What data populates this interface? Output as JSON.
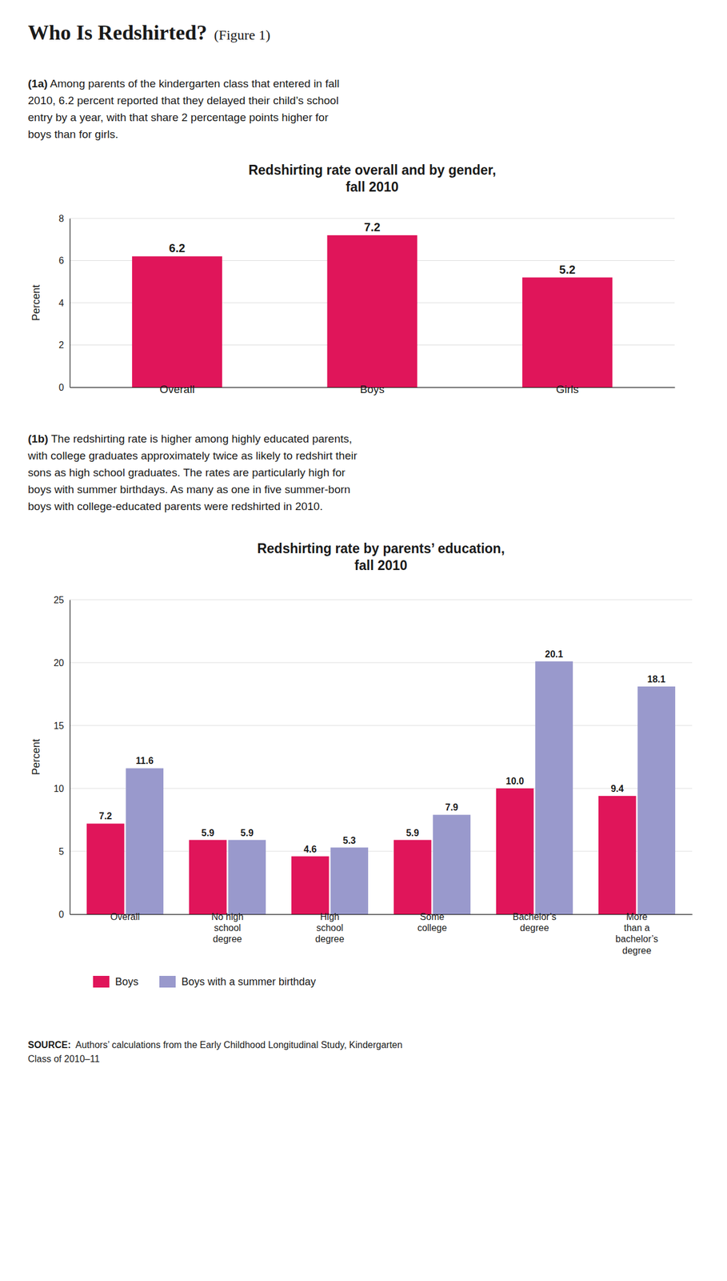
{
  "title": "Who Is Redshirted?",
  "subtitle": "(Figure 1)",
  "annotations": [
    "(1a) Among parents of the kindergarten class that entered in fall\n2010, 6.2 percent reported that they delayed their child’s school\nentry by a year, with that share 2 percentage points higher for\nboys than for girls.",
    "(1b) The redshirting rate is higher among highly educated parents,\nwith college graduates approximately twice as likely to redshirt their\nsons as high school graduates. The rates are particularly high for\nboys with summer birthdays. As many as one in five summer-born\nboys with college-educated parents were redshirted in 2010.",
    "SOURCE:  Authors’ calculations from the Early Childhood Longitudinal Study, Kindergarten\nClass of 2010–11"
  ],
  "chart_data": [
    {
      "type": "bar",
      "title": "Redshirting rate overall and by gender,\nfall 2010",
      "categories": [
        "Overall",
        "Boys",
        "Girls"
      ],
      "values": [
        6.2,
        7.2,
        5.2
      ],
      "color": "#e0155a",
      "ylim": [
        0,
        8
      ],
      "yticks": [
        0,
        2,
        4,
        6,
        8
      ],
      "ylabel": "Percent",
      "grid": true,
      "data_labels": true
    },
    {
      "type": "bar",
      "title": "Redshirting rate by parents’ education,\nfall 2010",
      "categories": [
        "Overall",
        "No high\nschool\ndegree",
        "High\nschool\ndegree",
        "Some\ncollege",
        "Bachelor’s\ndegree",
        "More\nthan a\nbachelor’s\ndegree"
      ],
      "series": [
        {
          "name": "Boys",
          "color": "#e0155a",
          "values": [
            7.2,
            5.9,
            4.6,
            5.9,
            10.0,
            9.4
          ],
          "value_labels": [
            "7.2",
            "5.9",
            "4.6",
            "5.9",
            "10.0",
            "9.4"
          ]
        },
        {
          "name": "Boys with a summer birthday",
          "color": "#9999cc",
          "values": [
            11.6,
            5.9,
            5.3,
            7.9,
            20.1,
            18.1
          ]
        }
      ],
      "ylim": [
        0,
        25
      ],
      "yticks": [
        0,
        5,
        10,
        15,
        20,
        25
      ],
      "ylabel": "Percent",
      "grid": true,
      "data_labels": true,
      "legend": "bottom"
    }
  ]
}
